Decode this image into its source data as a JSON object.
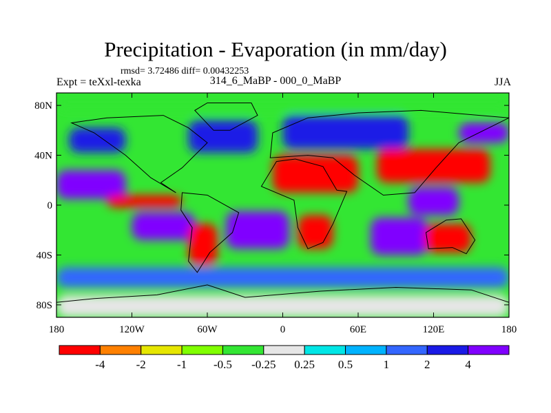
{
  "header": {
    "title": "Precipitation - Evaporation (in mm/day)",
    "stats": "rmsd= 3.72486 diff= 0.00432253",
    "experiment": "Expt = teXxl-texka",
    "period": "314_6_MaBP - 000_0_MaBP",
    "season": "JJA"
  },
  "chart_data": {
    "type": "heatmap",
    "title": "Precipitation - Evaporation (in mm/day)",
    "subtitle": "314_6_MaBP - 000_0_MaBP",
    "xlabel": "",
    "ylabel": "",
    "xlim": [
      -180,
      180
    ],
    "ylim": [
      -90,
      90
    ],
    "x_ticks": [
      {
        "value": -180,
        "label": "180"
      },
      {
        "value": -120,
        "label": "120W"
      },
      {
        "value": -60,
        "label": "60W"
      },
      {
        "value": 0,
        "label": "0"
      },
      {
        "value": 60,
        "label": "60E"
      },
      {
        "value": 120,
        "label": "120E"
      },
      {
        "value": 180,
        "label": "180"
      }
    ],
    "y_ticks": [
      {
        "value": 80,
        "label": "80N"
      },
      {
        "value": 40,
        "label": "40N"
      },
      {
        "value": 0,
        "label": "0"
      },
      {
        "value": -40,
        "label": "40S"
      },
      {
        "value": -80,
        "label": "80S"
      }
    ],
    "colorbar": {
      "colors": [
        "#ff0000",
        "#ff8000",
        "#e6e600",
        "#80ff00",
        "#33e633",
        "#e6e6e6",
        "#00e6e6",
        "#00b3ff",
        "#3366ff",
        "#1a1ae6",
        "#8000ff"
      ],
      "labels": [
        "-4",
        "-2",
        "-1",
        "-0.5",
        "-0.25",
        "0.25",
        "0.5",
        "1",
        "2",
        "4"
      ]
    },
    "regions": [
      {
        "name": "background",
        "level": 4,
        "lon": [
          -180,
          180
        ],
        "lat": [
          -90,
          90
        ]
      },
      {
        "name": "arctic-band",
        "level": 4,
        "lon": [
          -180,
          180
        ],
        "lat": [
          76,
          90
        ]
      },
      {
        "name": "north-pacific-storm-track",
        "level": 9,
        "lon": [
          -170,
          -125
        ],
        "lat": [
          42,
          62
        ]
      },
      {
        "name": "north-atlantic-storm-track",
        "level": 9,
        "lon": [
          -75,
          -20
        ],
        "lat": [
          42,
          68
        ]
      },
      {
        "name": "eurasia-storm-track",
        "level": 9,
        "lon": [
          0,
          100
        ],
        "lat": [
          45,
          72
        ]
      },
      {
        "name": "north-pacific-west",
        "level": 10,
        "lon": [
          140,
          180
        ],
        "lat": [
          50,
          66
        ]
      },
      {
        "name": "tropical-pacific",
        "level": 10,
        "lon": [
          -180,
          -125
        ],
        "lat": [
          5,
          28
        ]
      },
      {
        "name": "equatorial-pacific-dry",
        "level": 0,
        "lon": [
          -140,
          -80
        ],
        "lat": [
          -2,
          8
        ]
      },
      {
        "name": "south-pacific-convergence",
        "level": 10,
        "lon": [
          -120,
          -70
        ],
        "lat": [
          -28,
          -6
        ]
      },
      {
        "name": "south-atlantic",
        "level": 10,
        "lon": [
          -45,
          5
        ],
        "lat": [
          -35,
          -5
        ]
      },
      {
        "name": "indian-ocean",
        "level": 10,
        "lon": [
          70,
          115
        ],
        "lat": [
          -40,
          -10
        ]
      },
      {
        "name": "maritime-continent",
        "level": 10,
        "lon": [
          100,
          140
        ],
        "lat": [
          -8,
          14
        ]
      },
      {
        "name": "southern-ocean",
        "level": 8,
        "lon": [
          -180,
          180
        ],
        "lat": [
          -66,
          -50
        ]
      },
      {
        "name": "south-american-land",
        "level": 0,
        "lon": [
          -75,
          -52
        ],
        "lat": [
          -48,
          -15
        ]
      },
      {
        "name": "southern-africa-dry",
        "level": 0,
        "lon": [
          12,
          40
        ],
        "lat": [
          -35,
          -8
        ]
      },
      {
        "name": "north-africa-arabia-dry",
        "level": 0,
        "lon": [
          -8,
          60
        ],
        "lat": [
          10,
          40
        ]
      },
      {
        "name": "central-asia-dry",
        "level": 0,
        "lon": [
          75,
          165
        ],
        "lat": [
          18,
          45
        ]
      },
      {
        "name": "australia-dry",
        "level": 0,
        "lon": [
          113,
          150
        ],
        "lat": [
          -38,
          -15
        ]
      },
      {
        "name": "antarctica",
        "level": 5,
        "lon": [
          -180,
          180
        ],
        "lat": [
          -90,
          -72
        ]
      }
    ]
  }
}
